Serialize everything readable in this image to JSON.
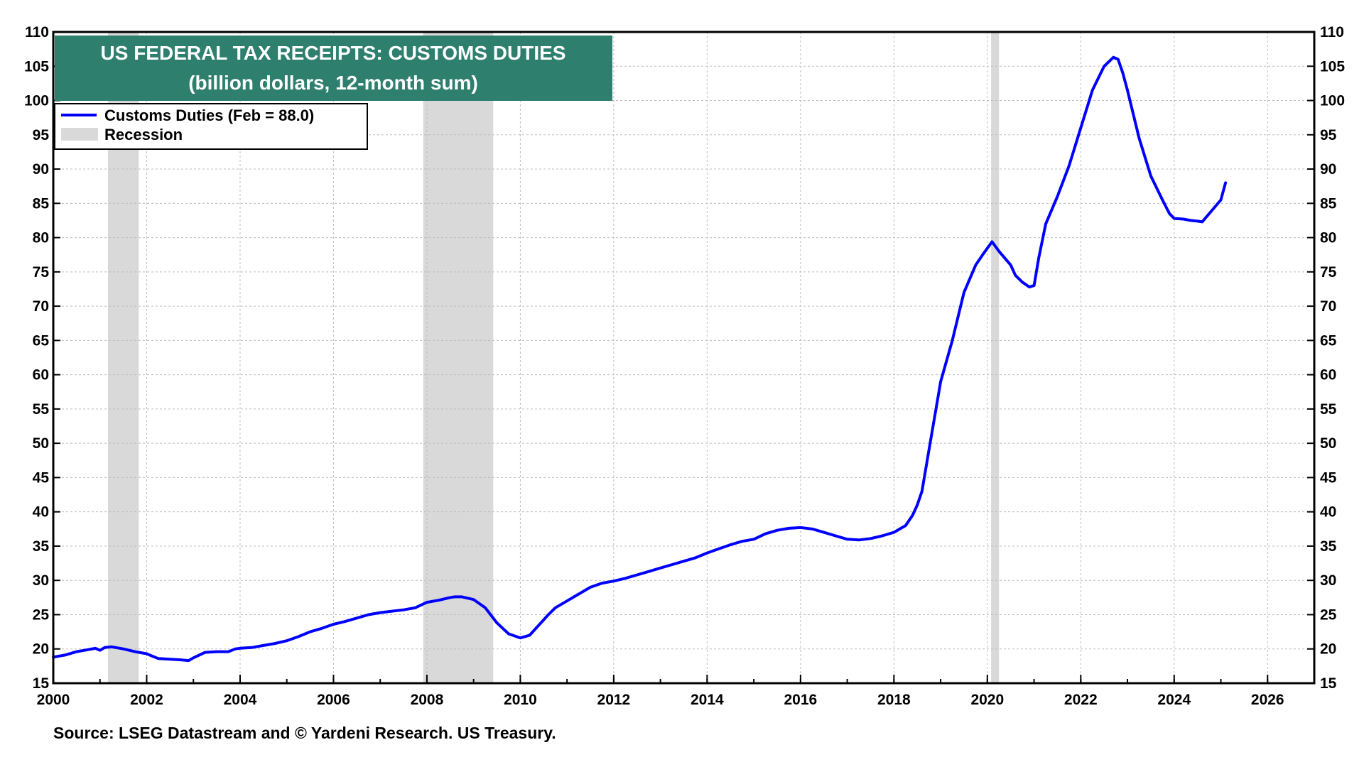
{
  "chart_data": {
    "type": "line",
    "title": "US FEDERAL TAX RECEIPTS: CUSTOMS DUTIES",
    "subtitle": "(billion dollars, 12-month sum)",
    "source": "Source: LSEG Datastream and © Yardeni Research. US Treasury.",
    "xlim": [
      2000,
      2027
    ],
    "ylim": [
      15,
      110
    ],
    "x_ticks": [
      "2000",
      "2002",
      "2004",
      "2006",
      "2008",
      "2010",
      "2012",
      "2014",
      "2016",
      "2018",
      "2020",
      "2022",
      "2024",
      "2026"
    ],
    "y_ticks": [
      "15",
      "20",
      "25",
      "30",
      "35",
      "40",
      "45",
      "50",
      "55",
      "60",
      "65",
      "70",
      "75",
      "80",
      "85",
      "90",
      "95",
      "100",
      "105",
      "110"
    ],
    "grid": true,
    "legend_placement": "top-left",
    "legend": [
      {
        "label": "Customs Duties (Feb = 88.0)",
        "color": "#0000ff",
        "kind": "line"
      },
      {
        "label": "Recession",
        "color": "#d9d9d9",
        "kind": "band"
      }
    ],
    "recessions": [
      {
        "start": 2001.17,
        "end": 2001.83
      },
      {
        "start": 2007.92,
        "end": 2009.42
      },
      {
        "start": 2020.08,
        "end": 2020.25
      }
    ],
    "series": [
      {
        "name": "Customs Duties",
        "color": "#0000ff",
        "x": [
          2000.0,
          2000.25,
          2000.5,
          2000.75,
          2000.9,
          2001.0,
          2001.1,
          2001.25,
          2001.5,
          2001.75,
          2002.0,
          2002.1,
          2002.25,
          2002.5,
          2002.75,
          2002.9,
          2003.0,
          2003.25,
          2003.5,
          2003.75,
          2003.9,
          2004.0,
          2004.25,
          2004.5,
          2004.75,
          2005.0,
          2005.25,
          2005.5,
          2005.75,
          2006.0,
          2006.25,
          2006.5,
          2006.75,
          2007.0,
          2007.25,
          2007.5,
          2007.75,
          2008.0,
          2008.25,
          2008.5,
          2008.6,
          2008.75,
          2009.0,
          2009.25,
          2009.5,
          2009.75,
          2010.0,
          2010.2,
          2010.4,
          2010.6,
          2010.75,
          2011.0,
          2011.25,
          2011.5,
          2011.75,
          2012.0,
          2012.25,
          2012.5,
          2012.75,
          2013.0,
          2013.25,
          2013.5,
          2013.75,
          2014.0,
          2014.25,
          2014.5,
          2014.75,
          2015.0,
          2015.25,
          2015.5,
          2015.75,
          2016.0,
          2016.25,
          2016.5,
          2016.75,
          2017.0,
          2017.25,
          2017.5,
          2017.75,
          2018.0,
          2018.25,
          2018.4,
          2018.5,
          2018.6,
          2018.75,
          2018.9,
          2019.0,
          2019.25,
          2019.5,
          2019.75,
          2019.9,
          2020.1,
          2020.25,
          2020.5,
          2020.6,
          2020.75,
          2020.9,
          2021.0,
          2021.1,
          2021.25,
          2021.5,
          2021.75,
          2022.0,
          2022.25,
          2022.5,
          2022.7,
          2022.8,
          2022.9,
          2023.0,
          2023.25,
          2023.5,
          2023.75,
          2023.9,
          2024.0,
          2024.2,
          2024.35,
          2024.5,
          2024.6,
          2024.75,
          2025.0,
          2025.1
        ],
        "y": [
          18.8,
          19.1,
          19.6,
          19.9,
          20.1,
          19.8,
          20.2,
          20.3,
          20.0,
          19.6,
          19.3,
          19.0,
          18.6,
          18.5,
          18.4,
          18.3,
          18.7,
          19.5,
          19.6,
          19.6,
          20.0,
          20.1,
          20.2,
          20.5,
          20.8,
          21.2,
          21.8,
          22.5,
          23.0,
          23.6,
          24.0,
          24.5,
          25.0,
          25.3,
          25.5,
          25.7,
          26.0,
          26.8,
          27.1,
          27.5,
          27.6,
          27.6,
          27.2,
          26.0,
          23.8,
          22.2,
          21.6,
          22.0,
          23.5,
          25.0,
          26.0,
          27.0,
          28.0,
          29.0,
          29.6,
          29.9,
          30.3,
          30.8,
          31.3,
          31.8,
          32.3,
          32.8,
          33.3,
          34.0,
          34.6,
          35.2,
          35.7,
          36.0,
          36.8,
          37.3,
          37.6,
          37.7,
          37.5,
          37.0,
          36.5,
          36.0,
          35.9,
          36.1,
          36.5,
          37.0,
          38.0,
          39.5,
          41.0,
          43.0,
          49.0,
          55.0,
          59.0,
          65.0,
          72.0,
          76.0,
          77.5,
          79.4,
          78.0,
          76.0,
          74.5,
          73.5,
          72.8,
          73.0,
          77.0,
          82.0,
          86.0,
          90.5,
          96.0,
          101.5,
          105.0,
          106.3,
          106.0,
          104.0,
          101.5,
          94.5,
          89.0,
          85.5,
          83.5,
          82.8,
          82.7,
          82.5,
          82.4,
          82.3,
          83.5,
          85.5,
          88.0
        ]
      }
    ]
  }
}
